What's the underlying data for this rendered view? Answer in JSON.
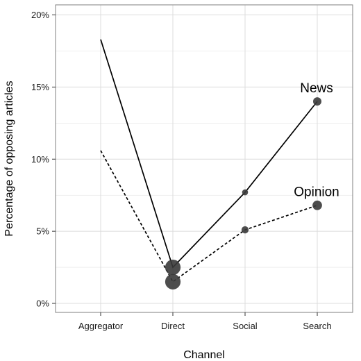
{
  "chart_data": {
    "type": "line",
    "title": "",
    "xlabel": "Channel",
    "ylabel": "Percentage of opposing articles",
    "categories": [
      "Aggregator",
      "Direct",
      "Social",
      "Search"
    ],
    "ylim": [
      0,
      20
    ],
    "y_ticks": [
      0,
      5,
      10,
      15,
      20
    ],
    "y_tick_labels": [
      "0%",
      "5%",
      "10%",
      "15%",
      "20%"
    ],
    "grid": true,
    "legend": "none (series labelled directly at line ends)",
    "series": [
      {
        "name": "News",
        "line_style": "solid",
        "values": [
          18.3,
          2.5,
          7.7,
          14.0
        ],
        "point_size": [
          0,
          5,
          1,
          2
        ]
      },
      {
        "name": "Opinion",
        "line_style": "dashed",
        "values": [
          10.6,
          1.5,
          5.1,
          6.8
        ],
        "point_size": [
          0,
          5,
          1.5,
          2.5
        ]
      }
    ],
    "colors": {
      "line": "#000000",
      "point": "#3a3a3a",
      "grid": "#dcdcdc",
      "panel_border": "#7f7f7f"
    }
  }
}
